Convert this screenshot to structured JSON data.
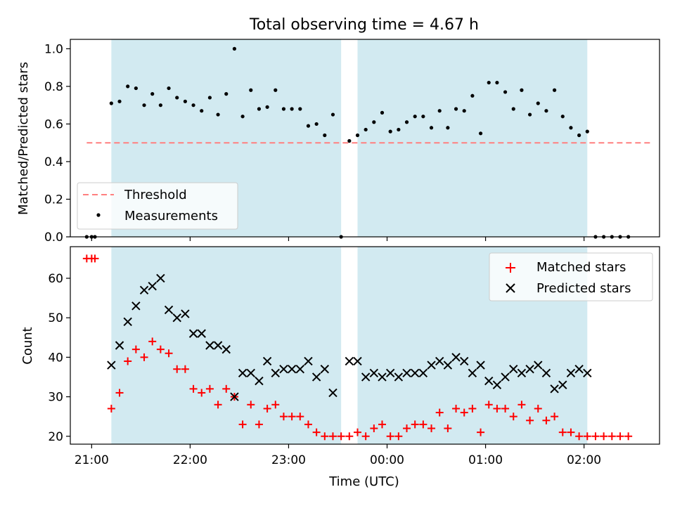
{
  "title": "Total observing time = 4.67 h",
  "colors": {
    "threshold": "#ff7f7f",
    "measurement": "#000000",
    "matched": "#ff0000",
    "predicted": "#000000",
    "shade": "#add8e6"
  },
  "chart_data": [
    {
      "type": "scatter",
      "ylabel": "Matched/Predicted stars",
      "xlim": [
        "20:47",
        "02:46"
      ],
      "ylim": [
        0,
        1.05
      ],
      "yticks": [
        "0.0",
        "0.2",
        "0.4",
        "0.6",
        "0.8",
        "1.0"
      ],
      "legend": {
        "placement": "lower-left",
        "entries": [
          "Threshold",
          "Measurements"
        ]
      },
      "shaded_intervals": [
        [
          "21:12",
          "23:32"
        ],
        [
          "23:42",
          "02:02"
        ]
      ],
      "threshold": {
        "name": "Threshold",
        "y": 0.5,
        "x_range": [
          "20:57",
          "02:42"
        ]
      },
      "series": [
        {
          "name": "Measurements",
          "x": [
            "20:57",
            "21:00",
            "21:02",
            "21:12",
            "21:17",
            "21:22",
            "21:27",
            "21:32",
            "21:37",
            "21:42",
            "21:47",
            "21:52",
            "21:57",
            "22:02",
            "22:07",
            "22:12",
            "22:17",
            "22:22",
            "22:27",
            "22:32",
            "22:37",
            "22:42",
            "22:47",
            "22:52",
            "22:57",
            "23:02",
            "23:07",
            "23:12",
            "23:17",
            "23:22",
            "23:27",
            "23:32",
            "23:37",
            "23:42",
            "23:47",
            "23:52",
            "23:57",
            "00:02",
            "00:07",
            "00:12",
            "00:17",
            "00:22",
            "00:27",
            "00:32",
            "00:37",
            "00:42",
            "00:47",
            "00:52",
            "00:57",
            "01:02",
            "01:07",
            "01:12",
            "01:17",
            "01:22",
            "01:27",
            "01:32",
            "01:37",
            "01:42",
            "01:47",
            "01:52",
            "01:57",
            "02:02",
            "02:07",
            "02:12",
            "02:17",
            "02:22",
            "02:27"
          ],
          "y": [
            0,
            0,
            0,
            0.71,
            0.72,
            0.8,
            0.79,
            0.7,
            0.76,
            0.7,
            0.79,
            0.74,
            0.72,
            0.7,
            0.67,
            0.74,
            0.65,
            0.76,
            1.0,
            0.64,
            0.78,
            0.68,
            0.69,
            0.78,
            0.68,
            0.68,
            0.68,
            0.59,
            0.6,
            0.54,
            0.65,
            0,
            0.51,
            0.54,
            0.57,
            0.61,
            0.66,
            0.56,
            0.57,
            0.61,
            0.64,
            0.64,
            0.58,
            0.67,
            0.58,
            0.68,
            0.67,
            0.75,
            0.55,
            0.82,
            0.82,
            0.77,
            0.68,
            0.78,
            0.65,
            0.71,
            0.67,
            0.78,
            0.64,
            0.58,
            0.54,
            0.56,
            0,
            0,
            0,
            0,
            0
          ]
        }
      ]
    },
    {
      "type": "scatter",
      "xlabel": "Time (UTC)",
      "ylabel": "Count",
      "xlim": [
        "20:47",
        "02:46"
      ],
      "ylim": [
        18,
        68
      ],
      "xticks": [
        "21:00",
        "22:00",
        "23:00",
        "00:00",
        "01:00",
        "02:00"
      ],
      "yticks": [
        "20",
        "30",
        "40",
        "50",
        "60"
      ],
      "legend": {
        "placement": "upper-right",
        "entries": [
          "Matched stars",
          "Predicted stars"
        ]
      },
      "shaded_intervals": [
        [
          "21:12",
          "23:32"
        ],
        [
          "23:42",
          "02:02"
        ]
      ],
      "series": [
        {
          "name": "Matched stars",
          "x": [
            "20:57",
            "21:00",
            "21:02",
            "21:12",
            "21:17",
            "21:22",
            "21:27",
            "21:32",
            "21:37",
            "21:42",
            "21:47",
            "21:52",
            "21:57",
            "22:02",
            "22:07",
            "22:12",
            "22:17",
            "22:22",
            "22:27",
            "22:32",
            "22:37",
            "22:42",
            "22:47",
            "22:52",
            "22:57",
            "23:02",
            "23:07",
            "23:12",
            "23:17",
            "23:22",
            "23:27",
            "23:32",
            "23:37",
            "23:42",
            "23:47",
            "23:52",
            "23:57",
            "00:02",
            "00:07",
            "00:12",
            "00:17",
            "00:22",
            "00:27",
            "00:32",
            "00:37",
            "00:42",
            "00:47",
            "00:52",
            "00:57",
            "01:02",
            "01:07",
            "01:12",
            "01:17",
            "01:22",
            "01:27",
            "01:32",
            "01:37",
            "01:42",
            "01:47",
            "01:52",
            "01:57",
            "02:02",
            "02:07",
            "02:12",
            "02:17",
            "02:22",
            "02:27"
          ],
          "y": [
            65,
            65,
            65,
            27,
            31,
            39,
            42,
            40,
            44,
            42,
            41,
            37,
            37,
            32,
            31,
            32,
            28,
            32,
            30,
            23,
            28,
            23,
            27,
            28,
            25,
            25,
            25,
            23,
            21,
            20,
            20,
            20,
            20,
            21,
            20,
            22,
            23,
            20,
            20,
            22,
            23,
            23,
            22,
            26,
            22,
            27,
            26,
            27,
            21,
            28,
            27,
            27,
            25,
            28,
            24,
            27,
            24,
            25,
            21,
            21,
            20,
            20,
            20,
            20,
            20,
            20,
            20
          ]
        },
        {
          "name": "Predicted stars",
          "x": [
            "21:12",
            "21:17",
            "21:22",
            "21:27",
            "21:32",
            "21:37",
            "21:42",
            "21:47",
            "21:52",
            "21:57",
            "22:02",
            "22:07",
            "22:12",
            "22:17",
            "22:22",
            "22:27",
            "22:32",
            "22:37",
            "22:42",
            "22:47",
            "22:52",
            "22:57",
            "23:02",
            "23:07",
            "23:12",
            "23:17",
            "23:22",
            "23:27",
            "23:37",
            "23:42",
            "23:47",
            "23:52",
            "23:57",
            "00:02",
            "00:07",
            "00:12",
            "00:17",
            "00:22",
            "00:27",
            "00:32",
            "00:37",
            "00:42",
            "00:47",
            "00:52",
            "00:57",
            "01:02",
            "01:07",
            "01:12",
            "01:17",
            "01:22",
            "01:27",
            "01:32",
            "01:37",
            "01:42",
            "01:47",
            "01:52",
            "01:57",
            "02:02"
          ],
          "y": [
            38,
            43,
            49,
            53,
            57,
            58,
            60,
            52,
            50,
            51,
            46,
            46,
            43,
            43,
            42,
            30,
            36,
            36,
            34,
            39,
            36,
            37,
            37,
            37,
            39,
            35,
            37,
            31,
            39,
            39,
            35,
            36,
            35,
            36,
            35,
            36,
            36,
            36,
            38,
            39,
            38,
            40,
            39,
            36,
            38,
            34,
            33,
            35,
            37,
            36,
            37,
            38,
            36,
            32,
            33,
            36,
            37,
            36
          ]
        }
      ]
    }
  ]
}
